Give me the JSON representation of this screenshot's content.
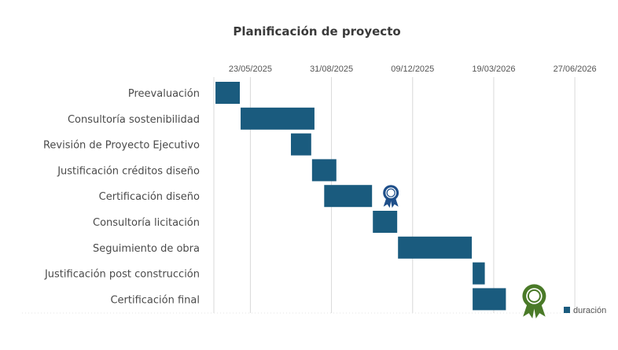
{
  "chart_data": {
    "type": "bar",
    "orientation": "horizontal-gantt",
    "title": "Planificación de proyecto",
    "x_ticks": [
      "23/05/2025",
      "31/08/2025",
      "09/12/2025",
      "19/03/2026",
      "27/06/2026"
    ],
    "xlim": [
      "2025-04-08",
      "2026-07-25"
    ],
    "categories": [
      "Preevaluación",
      "Consultoría sostenibilidad",
      "Revisión de Proyecto Ejecutivo",
      "Justificación créditos diseño",
      "Certificación diseño",
      "Consultoría licitación",
      "Seguimiento de obra",
      "Justificación post construcción",
      "Certificación final"
    ],
    "series": [
      {
        "name": "duración",
        "color": "#1a5b7e",
        "start": [
          "2025-04-10",
          "2025-05-11",
          "2025-07-12",
          "2025-08-07",
          "2025-08-22",
          "2025-10-21",
          "2025-11-21",
          "2026-02-21",
          "2026-02-21"
        ],
        "end": [
          "2025-05-10",
          "2025-08-10",
          "2025-08-06",
          "2025-09-06",
          "2025-10-20",
          "2025-11-20",
          "2026-02-20",
          "2026-03-08",
          "2026-04-03"
        ]
      }
    ],
    "legend": "bottom-right",
    "grid": true,
    "annotations": [
      {
        "icon": "award-ribbon-icon",
        "color": "#1f4f8a",
        "category": "Certificación diseño"
      },
      {
        "icon": "award-ribbon-icon",
        "color": "#4a7a28",
        "category": "Certificación final"
      }
    ]
  }
}
